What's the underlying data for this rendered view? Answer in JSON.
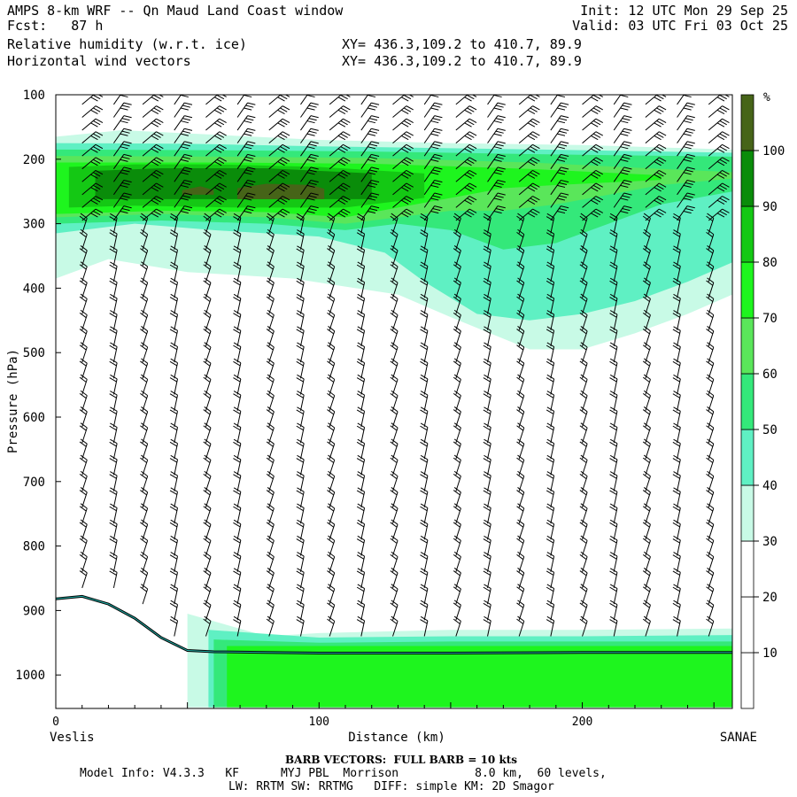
{
  "header": {
    "title": "AMPS 8-km WRF -- Qn Maud Land Coast window",
    "init_label": "Init:",
    "init": "12 UTC Mon 29 Sep 25",
    "fcst_label": "Fcst:",
    "fcst": "87 h",
    "valid_label": "Valid:",
    "valid": "03 UTC Fri 03 Oct 25",
    "field1": "Relative humidity (w.r.t. ice)",
    "field2": "Horizontal wind vectors",
    "xy1": "XY= 436.3,109.2 to 410.7, 89.9",
    "xy2": "XY= 436.3,109.2 to 410.7, 89.9"
  },
  "footer": {
    "barb_note": "BARB VECTORS:  FULL BARB = 10 kts",
    "model_info_1": "Model Info: V4.3.3   KF      MYJ PBL  Morrison           8.0 km,  60 levels,",
    "model_info_2": "LW: RRTM SW: RRTMG   DIFF: simple KM: 2D Smagor"
  },
  "colors": {
    "rh_10_20": "#ffffff",
    "rh_20_30": "#ffffff",
    "rh_30_40": "#c8fae6",
    "rh_40_50": "#5ff0c3",
    "rh_50_60": "#34e87a",
    "rh_60_70": "#5ae65a",
    "rh_70_80": "#1ef51e",
    "rh_80_90": "#14c814",
    "rh_90_100": "#0a8c0a",
    "rh_100_plus": "#466418",
    "terrain": "#000000",
    "terrain_inner": "#20b2aa"
  },
  "chart_data": {
    "type": "heatmap",
    "title": "Relative humidity (w.r.t. ice)",
    "xlabel": "Distance (km)",
    "ylabel": "Pressure (hPa)",
    "x_left_label": "Veslis",
    "x_right_label": "SANAE",
    "xlim": [
      0,
      257
    ],
    "ylim": [
      1050,
      100
    ],
    "x_ticks": [
      0,
      100,
      200
    ],
    "y_ticks": [
      100,
      200,
      300,
      400,
      500,
      600,
      700,
      800,
      900,
      1000
    ],
    "colorbar": {
      "unit": "%",
      "levels": [
        10,
        20,
        30,
        40,
        50,
        60,
        70,
        80,
        90,
        100
      ],
      "colors": [
        "#ffffff",
        "#ffffff",
        "#c8fae6",
        "#5ff0c3",
        "#34e87a",
        "#5ae65a",
        "#1ef51e",
        "#14c814",
        "#0a8c0a",
        "#466418"
      ]
    },
    "rh_regions": [
      {
        "level": "30-40",
        "upper": [
          [
            0,
            165
          ],
          [
            25,
            155
          ],
          [
            50,
            160
          ],
          [
            100,
            170
          ],
          [
            150,
            175
          ],
          [
            200,
            178
          ],
          [
            257,
            185
          ]
        ],
        "lower": [
          [
            0,
            385
          ],
          [
            20,
            355
          ],
          [
            50,
            375
          ],
          [
            90,
            385
          ],
          [
            130,
            410
          ],
          [
            150,
            445
          ],
          [
            165,
            470
          ],
          [
            180,
            495
          ],
          [
            200,
            495
          ],
          [
            220,
            470
          ],
          [
            240,
            440
          ],
          [
            257,
            410
          ]
        ]
      },
      {
        "level": "40-50",
        "upper": [
          [
            0,
            175
          ],
          [
            50,
            176
          ],
          [
            100,
            180
          ],
          [
            150,
            183
          ],
          [
            200,
            186
          ],
          [
            257,
            190
          ]
        ],
        "lower": [
          [
            0,
            315
          ],
          [
            30,
            300
          ],
          [
            60,
            310
          ],
          [
            100,
            320
          ],
          [
            125,
            345
          ],
          [
            140,
            390
          ],
          [
            160,
            440
          ],
          [
            180,
            450
          ],
          [
            200,
            440
          ],
          [
            220,
            420
          ],
          [
            240,
            390
          ],
          [
            257,
            360
          ]
        ]
      },
      {
        "level": "50-60",
        "upper": [
          [
            0,
            185
          ],
          [
            60,
            186
          ],
          [
            120,
            188
          ],
          [
            180,
            192
          ],
          [
            257,
            196
          ]
        ],
        "lower": [
          [
            0,
            300
          ],
          [
            40,
            295
          ],
          [
            80,
            300
          ],
          [
            110,
            310
          ],
          [
            130,
            300
          ],
          [
            150,
            310
          ],
          [
            170,
            340
          ],
          [
            190,
            330
          ],
          [
            210,
            300
          ],
          [
            230,
            270
          ],
          [
            257,
            250
          ]
        ]
      },
      {
        "level": "60-70",
        "upper": [
          [
            0,
            195
          ],
          [
            60,
            196
          ],
          [
            120,
            198
          ],
          [
            180,
            205
          ],
          [
            230,
            215
          ],
          [
            257,
            220
          ]
        ],
        "lower": [
          [
            0,
            290
          ],
          [
            40,
            285
          ],
          [
            80,
            290
          ],
          [
            110,
            300
          ],
          [
            130,
            290
          ],
          [
            150,
            280
          ],
          [
            170,
            280
          ],
          [
            190,
            270
          ],
          [
            210,
            255
          ],
          [
            230,
            240
          ],
          [
            257,
            230
          ]
        ]
      },
      {
        "level": "70-80",
        "upper": [
          [
            0,
            205
          ],
          [
            60,
            205
          ],
          [
            120,
            207
          ],
          [
            180,
            215
          ],
          [
            230,
            225
          ]
        ],
        "lower": [
          [
            0,
            285
          ],
          [
            40,
            280
          ],
          [
            80,
            282
          ],
          [
            110,
            290
          ],
          [
            130,
            275
          ],
          [
            150,
            260
          ],
          [
            170,
            245
          ],
          [
            190,
            240
          ],
          [
            230,
            232
          ]
        ]
      },
      {
        "level": "80-90",
        "upper": [
          [
            5,
            212
          ],
          [
            30,
            208
          ],
          [
            60,
            208
          ],
          [
            100,
            212
          ],
          [
            140,
            222
          ]
        ],
        "lower": [
          [
            5,
            275
          ],
          [
            30,
            272
          ],
          [
            70,
            275
          ],
          [
            110,
            275
          ],
          [
            140,
            260
          ]
        ]
      },
      {
        "level": "90-100",
        "upper": [
          [
            15,
            218
          ],
          [
            40,
            214
          ],
          [
            80,
            214
          ],
          [
            120,
            222
          ]
        ],
        "lower": [
          [
            15,
            262
          ],
          [
            40,
            262
          ],
          [
            80,
            262
          ],
          [
            120,
            262
          ]
        ]
      },
      {
        "level": "100+",
        "upper": [
          [
            48,
            248
          ],
          [
            55,
            242
          ],
          [
            60,
            248
          ]
        ],
        "lower": [
          [
            48,
            255
          ],
          [
            60,
            255
          ]
        ]
      },
      {
        "level": "100+",
        "upper": [
          [
            69,
            245
          ],
          [
            80,
            238
          ],
          [
            97,
            240
          ],
          [
            102,
            246
          ]
        ],
        "lower": [
          [
            69,
            262
          ],
          [
            102,
            262
          ]
        ]
      },
      {
        "level": "30-40",
        "upper": [
          [
            50,
            905
          ],
          [
            80,
            940
          ],
          [
            100,
            935
          ],
          [
            150,
            930
          ],
          [
            200,
            930
          ],
          [
            257,
            928
          ]
        ],
        "lower": [
          [
            257,
            1050
          ],
          [
            50,
            1050
          ]
        ]
      },
      {
        "level": "40-50",
        "upper": [
          [
            58,
            930
          ],
          [
            100,
            942
          ],
          [
            150,
            940
          ],
          [
            200,
            940
          ],
          [
            257,
            938
          ]
        ],
        "lower": [
          [
            257,
            1050
          ],
          [
            58,
            1050
          ]
        ]
      },
      {
        "level": "50-60",
        "upper": [
          [
            60,
            945
          ],
          [
            100,
            950
          ],
          [
            150,
            948
          ],
          [
            200,
            948
          ],
          [
            257,
            948
          ]
        ],
        "lower": [
          [
            257,
            1050
          ],
          [
            60,
            1050
          ]
        ]
      },
      {
        "level": "70-80",
        "upper": [
          [
            65,
            955
          ],
          [
            150,
            955
          ],
          [
            257,
            955
          ]
        ],
        "lower": [
          [
            257,
            1050
          ],
          [
            65,
            1050
          ]
        ]
      }
    ],
    "terrain_pressure": [
      [
        0,
        882
      ],
      [
        10,
        878
      ],
      [
        20,
        890
      ],
      [
        30,
        912
      ],
      [
        40,
        942
      ],
      [
        50,
        962
      ],
      [
        60,
        964
      ],
      [
        80,
        965
      ],
      [
        100,
        966
      ],
      [
        150,
        966
      ],
      [
        200,
        965
      ],
      [
        257,
        965
      ]
    ],
    "wind_barbs": {
      "x_columns": [
        10,
        22,
        33,
        45,
        57,
        69,
        81,
        93,
        104,
        116,
        128,
        140,
        152,
        164,
        176,
        188,
        200,
        212,
        224,
        236,
        248
      ],
      "pressure_levels": [
        115,
        135,
        155,
        175,
        195,
        215,
        235,
        255,
        275,
        295,
        315,
        340,
        365,
        390,
        415,
        440,
        465,
        490,
        515,
        540,
        565,
        590,
        615,
        640,
        665,
        690,
        715,
        740,
        765,
        790,
        815,
        840,
        865,
        890,
        915,
        940
      ],
      "full_barb_kts": 10
    }
  }
}
